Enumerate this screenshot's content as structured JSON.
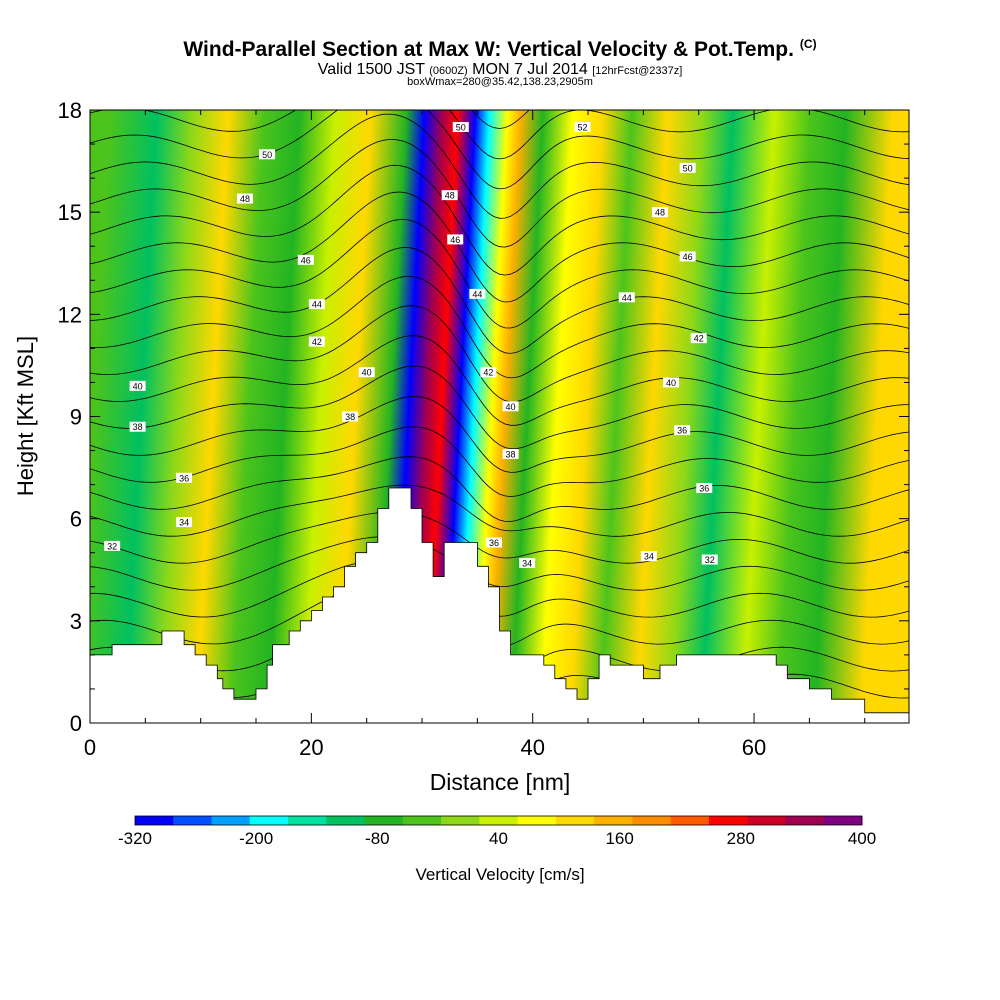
{
  "title": {
    "main": "Wind-Parallel Section at Max W: Vertical Velocity & Pot.Temp.",
    "corner": "(C)",
    "valid_prefix": "Valid 1500 JST",
    "valid_zulu": "(0600Z)",
    "valid_date": "MON 7 Jul 2014",
    "forecast_info": "[12hrFcst@2337z]",
    "box_info": "boxWmax=280@35.42,138.23,2905m"
  },
  "chart_data": {
    "type": "heatmap",
    "xlabel": "Distance [nm]",
    "ylabel": "Height [Kft MSL]",
    "xlim": [
      0,
      74
    ],
    "ylim": [
      0,
      18
    ],
    "x_ticks": [
      "0",
      "20",
      "40",
      "60"
    ],
    "y_ticks": [
      "0",
      "3",
      "6",
      "9",
      "12",
      "15",
      "18"
    ],
    "colorbar": {
      "label": "Vertical Velocity [cm/s]",
      "tick_labels": [
        "-320",
        "-200",
        "-80",
        "40",
        "160",
        "280",
        "400"
      ],
      "levels": [
        -320,
        400
      ],
      "colors": [
        "#0000ff",
        "#0050ff",
        "#00a0ff",
        "#00ffff",
        "#00e0a0",
        "#00c060",
        "#22b422",
        "#4cc41c",
        "#8ed818",
        "#c8f000",
        "#ffff00",
        "#ffd800",
        "#ffb000",
        "#ff8c00",
        "#ff5a00",
        "#ff0000",
        "#c80028",
        "#a00050",
        "#800080"
      ]
    },
    "velocity_columns": [
      {
        "x": 4,
        "w": -40
      },
      {
        "x": 8,
        "w": -110
      },
      {
        "x": 11,
        "w": 20
      },
      {
        "x": 14,
        "w": 100
      },
      {
        "x": 17,
        "w": -40
      },
      {
        "x": 20,
        "w": -60
      },
      {
        "x": 23,
        "w": 40
      },
      {
        "x": 26,
        "w": 110
      },
      {
        "x": 29,
        "w": -90
      },
      {
        "x": 30.5,
        "w": -310
      },
      {
        "x": 32,
        "w": 330
      },
      {
        "x": 33.3,
        "w": 250
      },
      {
        "x": 34.8,
        "w": -320
      },
      {
        "x": 36,
        "w": -200
      },
      {
        "x": 37.5,
        "w": 90
      },
      {
        "x": 38.6,
        "w": 170
      },
      {
        "x": 40.5,
        "w": -60
      },
      {
        "x": 43,
        "w": 60
      },
      {
        "x": 45.5,
        "w": 130
      },
      {
        "x": 48,
        "w": -40
      },
      {
        "x": 51,
        "w": 120
      },
      {
        "x": 54,
        "w": -10
      },
      {
        "x": 56.5,
        "w": -110
      },
      {
        "x": 60,
        "w": 30
      },
      {
        "x": 63,
        "w": -20
      },
      {
        "x": 66,
        "w": -80
      },
      {
        "x": 70,
        "w": 110
      }
    ],
    "theta_contours": {
      "levels": [
        30,
        31,
        32,
        33,
        34,
        35,
        36,
        37,
        38,
        39,
        40,
        41,
        42,
        43,
        44,
        45,
        46,
        47,
        48,
        49,
        50,
        51,
        52,
        53,
        54
      ],
      "labels": [
        {
          "text": "32",
          "x": 2,
          "y": 5.2
        },
        {
          "text": "34",
          "x": 8.5,
          "y": 5.9
        },
        {
          "text": "36",
          "x": 8.5,
          "y": 7.2
        },
        {
          "text": "38",
          "x": 4.3,
          "y": 8.7
        },
        {
          "text": "40",
          "x": 4.3,
          "y": 9.9
        },
        {
          "text": "42",
          "x": 20.5,
          "y": 11.2
        },
        {
          "text": "44",
          "x": 20.5,
          "y": 12.3
        },
        {
          "text": "46",
          "x": 19.5,
          "y": 13.6
        },
        {
          "text": "48",
          "x": 14,
          "y": 15.4
        },
        {
          "text": "50",
          "x": 16,
          "y": 16.7
        },
        {
          "text": "50",
          "x": 33.5,
          "y": 17.5
        },
        {
          "text": "48",
          "x": 32.5,
          "y": 15.5
        },
        {
          "text": "46",
          "x": 33,
          "y": 14.2
        },
        {
          "text": "44",
          "x": 35,
          "y": 12.6
        },
        {
          "text": "42",
          "x": 36,
          "y": 10.3
        },
        {
          "text": "40",
          "x": 38,
          "y": 9.3
        },
        {
          "text": "38",
          "x": 38,
          "y": 7.9
        },
        {
          "text": "36",
          "x": 36.5,
          "y": 5.3
        },
        {
          "text": "34",
          "x": 39.5,
          "y": 4.7
        },
        {
          "text": "38",
          "x": 23.5,
          "y": 9.0
        },
        {
          "text": "40",
          "x": 25,
          "y": 10.3
        },
        {
          "text": "52",
          "x": 44.5,
          "y": 17.5
        },
        {
          "text": "50",
          "x": 54,
          "y": 16.3
        },
        {
          "text": "48",
          "x": 51.5,
          "y": 15.0
        },
        {
          "text": "46",
          "x": 54,
          "y": 13.7
        },
        {
          "text": "44",
          "x": 48.5,
          "y": 12.5
        },
        {
          "text": "42",
          "x": 55,
          "y": 11.3
        },
        {
          "text": "40",
          "x": 52.5,
          "y": 10.0
        },
        {
          "text": "36",
          "x": 53.5,
          "y": 8.6
        },
        {
          "text": "36",
          "x": 55.5,
          "y": 6.9
        },
        {
          "text": "34",
          "x": 50.5,
          "y": 4.9
        },
        {
          "text": "32",
          "x": 56,
          "y": 4.8
        }
      ]
    },
    "terrain": [
      [
        0,
        2.0
      ],
      [
        2,
        2.0
      ],
      [
        2,
        2.3
      ],
      [
        6.5,
        2.3
      ],
      [
        6.5,
        2.7
      ],
      [
        8.5,
        2.7
      ],
      [
        8.5,
        2.3
      ],
      [
        9.5,
        2.3
      ],
      [
        9.5,
        2.0
      ],
      [
        10.5,
        2.0
      ],
      [
        10.5,
        1.7
      ],
      [
        11.5,
        1.7
      ],
      [
        11.5,
        1.3
      ],
      [
        12,
        1.3
      ],
      [
        12,
        1.0
      ],
      [
        13,
        1.0
      ],
      [
        13,
        0.7
      ],
      [
        15,
        0.7
      ],
      [
        15,
        1.0
      ],
      [
        16,
        1.0
      ],
      [
        16,
        1.7
      ],
      [
        16.5,
        1.7
      ],
      [
        16.5,
        2.3
      ],
      [
        18,
        2.3
      ],
      [
        18,
        2.7
      ],
      [
        19,
        2.7
      ],
      [
        19,
        3.0
      ],
      [
        20,
        3.0
      ],
      [
        20,
        3.3
      ],
      [
        21,
        3.3
      ],
      [
        21,
        3.7
      ],
      [
        22,
        3.7
      ],
      [
        22,
        4.0
      ],
      [
        23,
        4.0
      ],
      [
        23,
        4.6
      ],
      [
        24,
        4.6
      ],
      [
        24,
        5.0
      ],
      [
        25,
        5.0
      ],
      [
        25,
        5.3
      ],
      [
        26,
        5.3
      ],
      [
        26,
        6.3
      ],
      [
        27,
        6.3
      ],
      [
        27,
        6.9
      ],
      [
        29,
        6.9
      ],
      [
        29,
        6.3
      ],
      [
        30,
        6.3
      ],
      [
        30,
        5.3
      ],
      [
        31,
        5.3
      ],
      [
        31,
        4.3
      ],
      [
        32,
        4.3
      ],
      [
        32,
        5.3
      ],
      [
        35,
        5.3
      ],
      [
        35,
        4.6
      ],
      [
        36,
        4.6
      ],
      [
        36,
        4.0
      ],
      [
        37,
        4.0
      ],
      [
        37,
        2.7
      ],
      [
        38,
        2.7
      ],
      [
        38,
        2.0
      ],
      [
        41,
        2.0
      ],
      [
        41,
        1.7
      ],
      [
        42,
        1.7
      ],
      [
        42,
        1.3
      ],
      [
        43,
        1.3
      ],
      [
        43,
        1.0
      ],
      [
        44,
        1.0
      ],
      [
        44,
        0.7
      ],
      [
        45,
        0.7
      ],
      [
        45,
        1.3
      ],
      [
        46,
        1.3
      ],
      [
        46,
        2.0
      ],
      [
        47,
        2.0
      ],
      [
        47,
        1.7
      ],
      [
        50,
        1.7
      ],
      [
        50,
        1.3
      ],
      [
        51.5,
        1.3
      ],
      [
        51.5,
        1.7
      ],
      [
        53,
        1.7
      ],
      [
        53,
        2.0
      ],
      [
        62,
        2.0
      ],
      [
        62,
        1.7
      ],
      [
        63,
        1.7
      ],
      [
        63,
        1.3
      ],
      [
        65,
        1.3
      ],
      [
        65,
        1.0
      ],
      [
        67,
        1.0
      ],
      [
        67,
        0.7
      ],
      [
        70,
        0.7
      ],
      [
        70,
        0.3
      ],
      [
        74,
        0.3
      ],
      [
        74,
        0
      ]
    ]
  }
}
